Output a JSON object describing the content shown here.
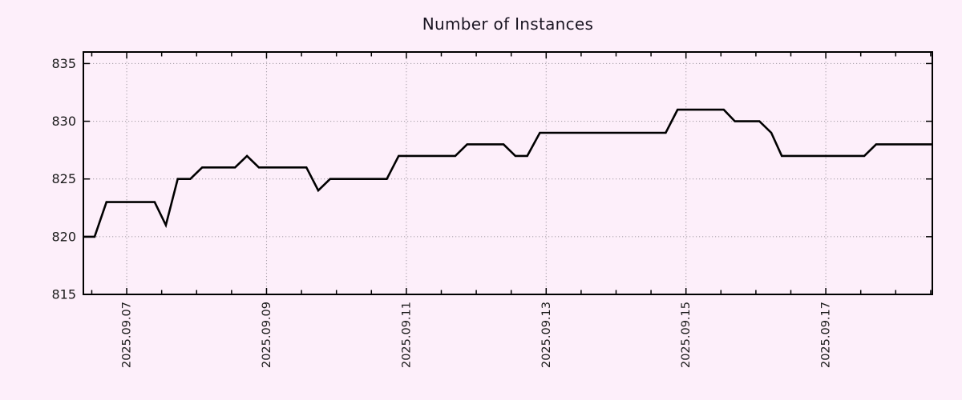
{
  "title": "Number of Instances",
  "colors": {
    "background": "#fdeffa",
    "series_line": "#000000",
    "grid": "#aba3ad",
    "axis": "#000000",
    "title_text": "#1a1522",
    "tick_text": "#1a1a1a"
  },
  "chart_data": {
    "type": "line",
    "title": "Number of Instances",
    "xlabel": "",
    "ylabel": "",
    "x_unit": "fractional day of 2025-09 (7.0 = 2025.09.07 00:00)",
    "xlim": [
      6.38,
      18.524
    ],
    "ylim": [
      815,
      836
    ],
    "y_ticks": [
      815,
      820,
      825,
      830,
      835
    ],
    "x_major_ticks": [
      {
        "day": 7,
        "label": "2025.09.07"
      },
      {
        "day": 9,
        "label": "2025.09.09"
      },
      {
        "day": 11,
        "label": "2025.09.11"
      },
      {
        "day": 13,
        "label": "2025.09.13"
      },
      {
        "day": 15,
        "label": "2025.09.15"
      },
      {
        "day": 17,
        "label": "2025.09.17"
      }
    ],
    "x_minor_step": 0.5,
    "grid": true,
    "legend": null,
    "series": [
      {
        "name": "instances",
        "color": "#000000",
        "points": [
          {
            "day": 6.38,
            "value": 820
          },
          {
            "day": 6.54,
            "value": 820
          },
          {
            "day": 6.71,
            "value": 823
          },
          {
            "day": 7.4,
            "value": 823
          },
          {
            "day": 7.56,
            "value": 821
          },
          {
            "day": 7.73,
            "value": 825
          },
          {
            "day": 7.91,
            "value": 825
          },
          {
            "day": 8.08,
            "value": 826
          },
          {
            "day": 8.55,
            "value": 826
          },
          {
            "day": 8.72,
            "value": 827
          },
          {
            "day": 8.89,
            "value": 826
          },
          {
            "day": 9.57,
            "value": 826
          },
          {
            "day": 9.74,
            "value": 824
          },
          {
            "day": 9.91,
            "value": 825
          },
          {
            "day": 10.72,
            "value": 825
          },
          {
            "day": 10.89,
            "value": 827
          },
          {
            "day": 11.7,
            "value": 827
          },
          {
            "day": 11.87,
            "value": 828
          },
          {
            "day": 12.39,
            "value": 828
          },
          {
            "day": 12.56,
            "value": 827
          },
          {
            "day": 12.73,
            "value": 827
          },
          {
            "day": 12.91,
            "value": 829
          },
          {
            "day": 14.71,
            "value": 829
          },
          {
            "day": 14.88,
            "value": 831
          },
          {
            "day": 15.54,
            "value": 831
          },
          {
            "day": 15.7,
            "value": 830
          },
          {
            "day": 16.05,
            "value": 830
          },
          {
            "day": 16.22,
            "value": 829
          },
          {
            "day": 16.37,
            "value": 827
          },
          {
            "day": 17.55,
            "value": 827
          },
          {
            "day": 17.72,
            "value": 828
          },
          {
            "day": 18.52,
            "value": 828
          }
        ]
      }
    ]
  }
}
